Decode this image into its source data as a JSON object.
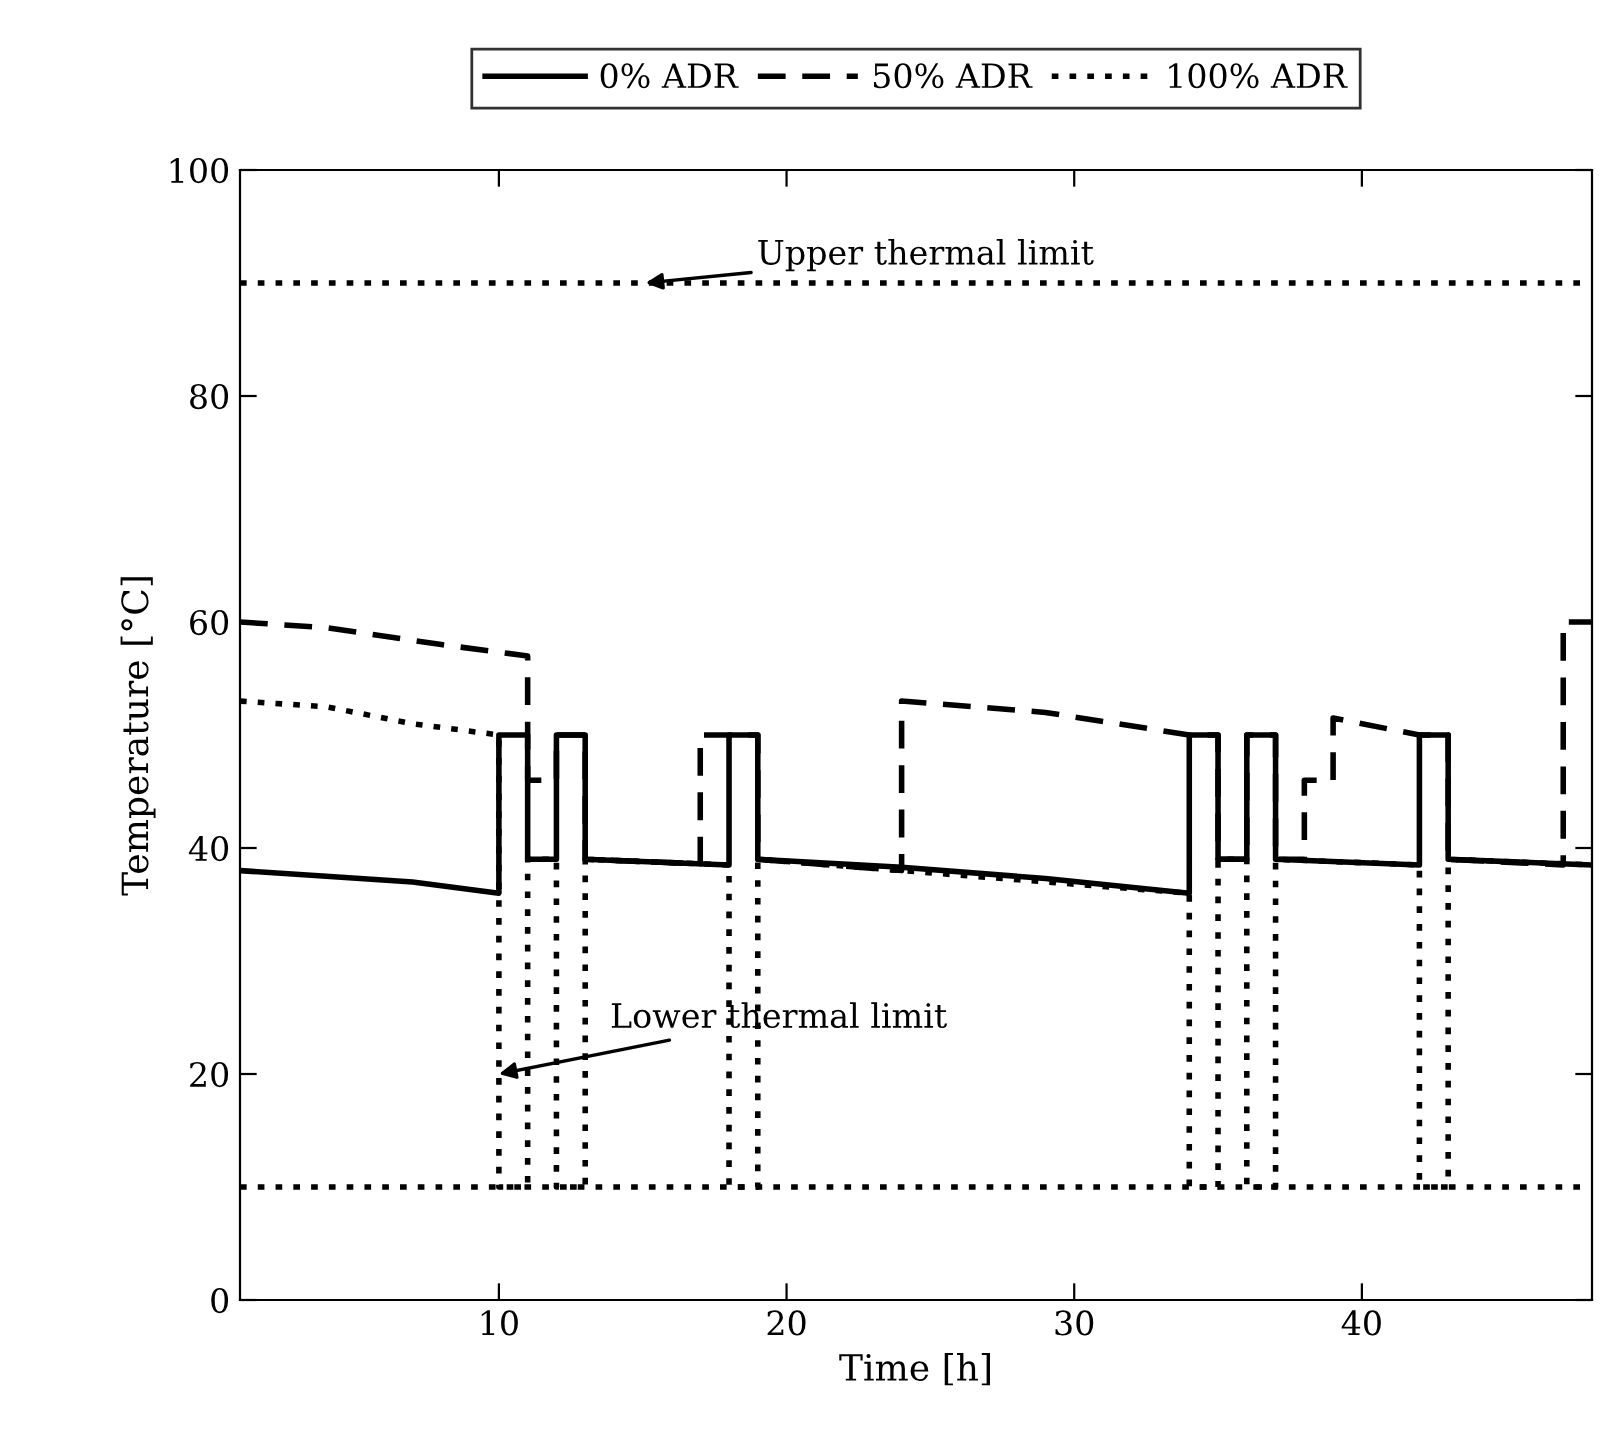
{
  "chart_data": {
    "type": "line",
    "xlabel": "Time [h]",
    "ylabel": "Temperature [°C]",
    "xlim": [
      1,
      48
    ],
    "xticks": [
      10,
      20,
      30,
      40
    ],
    "ylim": [
      0,
      100
    ],
    "yticks": [
      0,
      20,
      40,
      60,
      80,
      100
    ],
    "grid": false,
    "legend": "top",
    "marker": "none",
    "series": [
      {
        "name": "0% ADR",
        "color": "#000000",
        "line_style": "solid",
        "x": [
          1,
          4,
          7,
          10,
          10,
          11,
          11,
          12,
          12,
          13,
          13,
          18,
          18,
          19,
          19,
          24,
          29,
          34,
          34,
          35,
          35,
          36,
          36,
          37,
          37,
          42,
          42,
          43,
          43,
          48
        ],
        "values": [
          38,
          37.5,
          37,
          36,
          50,
          50,
          39,
          39,
          50,
          50,
          39,
          38.5,
          50,
          50,
          39,
          38.3,
          37.3,
          36,
          50,
          50,
          39,
          39,
          50,
          50,
          39,
          38.5,
          50,
          50,
          39,
          38.5
        ]
      },
      {
        "name": "50% ADR",
        "color": "#000000",
        "line_style": "dashed",
        "x": [
          1,
          4,
          8,
          11,
          11,
          12,
          12,
          13,
          13,
          17,
          17,
          19,
          19,
          24,
          24,
          29,
          34,
          35,
          35,
          36,
          36,
          37,
          37,
          38,
          38,
          39,
          39,
          42,
          43,
          43,
          47,
          47,
          48
        ],
        "values": [
          60,
          59.5,
          58,
          57,
          46,
          46,
          50,
          50,
          39,
          38.6,
          50,
          50,
          39,
          38,
          53,
          52,
          50,
          50,
          39,
          39,
          50,
          50,
          39,
          39,
          46,
          46,
          51.5,
          50,
          50,
          39,
          38.5,
          60,
          60
        ]
      },
      {
        "name": "100% ADR",
        "color": "#000000",
        "line_style": "dotted",
        "x": [
          1,
          4,
          7,
          10,
          10,
          11,
          11,
          12,
          12,
          13,
          13,
          18,
          18,
          19,
          19,
          34,
          34,
          35,
          35,
          36,
          36,
          37,
          37,
          42,
          42,
          43,
          43,
          48
        ],
        "values": [
          53,
          52.5,
          51,
          50,
          10,
          10,
          39,
          39,
          10,
          10,
          39,
          38.5,
          10,
          10,
          39,
          36,
          10,
          10,
          39,
          39,
          10,
          10,
          39,
          38.5,
          10,
          10,
          39,
          38.5
        ]
      }
    ],
    "ref_lines": [
      {
        "axis": "y",
        "value": 90,
        "color": "#000000",
        "line_style": "dotted",
        "label": "Upper thermal limit"
      },
      {
        "axis": "y",
        "value": 10,
        "color": "#000000",
        "line_style": "dotted"
      }
    ],
    "annotations": [
      {
        "text": "Lower thermal limit",
        "x": 10,
        "y": 20
      }
    ]
  }
}
